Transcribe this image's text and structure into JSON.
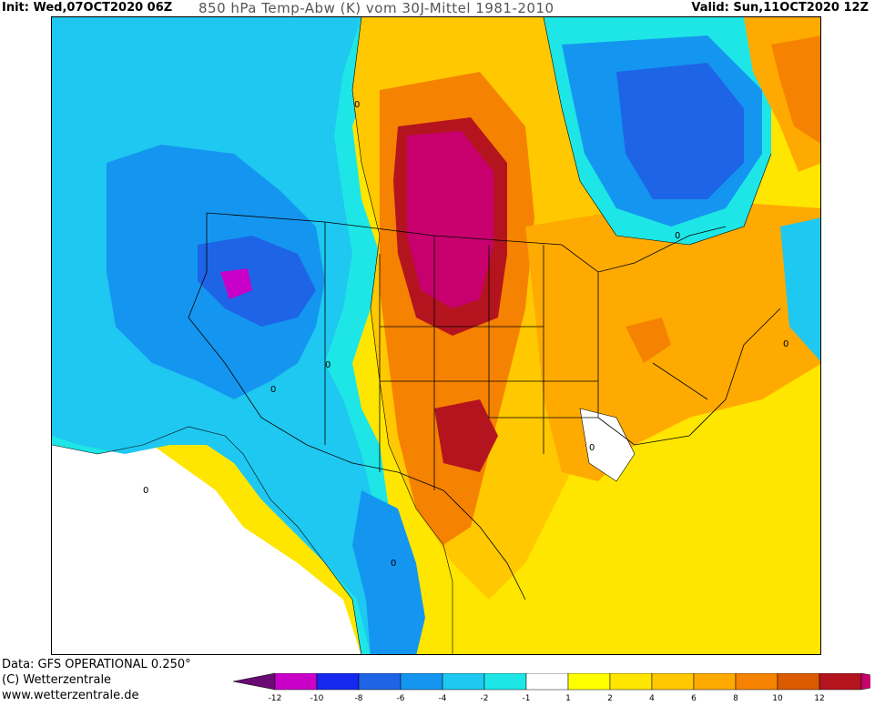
{
  "header": {
    "init": "Init: Wed,07OCT2020 06Z",
    "title": "850 hPa Temp-Abw (K) vom 30J-Mittel 1981-2010",
    "valid": "Valid: Sun,11OCT2020 12Z"
  },
  "footer": {
    "data_line": "Data: GFS OPERATIONAL 0.250°",
    "copyright_line": "(C) Wetterzentrale",
    "url_line": "www.wetterzentrale.de"
  },
  "map": {
    "contour_labels": [
      "0",
      "0",
      "0",
      "0",
      "0",
      "0",
      "0",
      "0"
    ]
  },
  "legend": {
    "colors": [
      "#6a0a73",
      "#c800c8",
      "#1428f0",
      "#1e64e6",
      "#1496f0",
      "#1ec8f0",
      "#1ee6e6",
      "#ffffff",
      "#ffff00",
      "#ffe600",
      "#ffc800",
      "#ffaa00",
      "#f58200",
      "#dc5a00",
      "#b4141e",
      "#c8006e"
    ],
    "ticks": [
      "-12",
      "-10",
      "-8",
      "-6",
      "-4",
      "-2",
      "-1",
      "1",
      "2",
      "4",
      "6",
      "8",
      "10",
      "12"
    ]
  }
}
